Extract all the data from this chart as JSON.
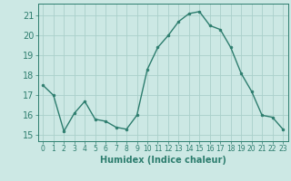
{
  "x": [
    0,
    1,
    2,
    3,
    4,
    5,
    6,
    7,
    8,
    9,
    10,
    11,
    12,
    13,
    14,
    15,
    16,
    17,
    18,
    19,
    20,
    21,
    22,
    23
  ],
  "y": [
    17.5,
    17.0,
    15.2,
    16.1,
    16.7,
    15.8,
    15.7,
    15.4,
    15.3,
    16.0,
    18.3,
    19.4,
    20.0,
    20.7,
    21.1,
    21.2,
    20.5,
    20.3,
    19.4,
    18.1,
    17.2,
    16.0,
    15.9,
    15.3
  ],
  "line_color": "#2d7d6e",
  "marker": "o",
  "marker_size": 2.0,
  "line_width": 1.0,
  "bg_color": "#cce8e4",
  "grid_color": "#aad0ca",
  "xlabel": "Humidex (Indice chaleur)",
  "ylim": [
    14.7,
    21.6
  ],
  "xlim": [
    -0.5,
    23.5
  ],
  "yticks": [
    15,
    16,
    17,
    18,
    19,
    20,
    21
  ],
  "xticks": [
    0,
    1,
    2,
    3,
    4,
    5,
    6,
    7,
    8,
    9,
    10,
    11,
    12,
    13,
    14,
    15,
    16,
    17,
    18,
    19,
    20,
    21,
    22,
    23
  ],
  "xlabel_fontsize": 7,
  "ytick_fontsize": 7,
  "xtick_fontsize": 5.5,
  "axis_color": "#2d7d6e",
  "spine_color": "#2d7d6e"
}
